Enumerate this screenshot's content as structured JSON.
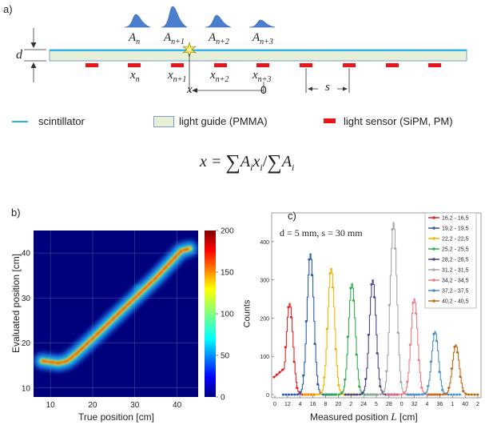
{
  "panel_a": {
    "label": "a)",
    "pulse_labels": [
      {
        "base": "A",
        "sub": "n"
      },
      {
        "base": "A",
        "sub": "n+1"
      },
      {
        "base": "A",
        "sub": "n+2"
      },
      {
        "base": "A",
        "sub": "n+3"
      }
    ],
    "sensor_labels": [
      {
        "base": "x",
        "sub": "n"
      },
      {
        "base": "x",
        "sub": "n+1"
      },
      {
        "base": "x",
        "sub": "n+2"
      },
      {
        "base": "x",
        "sub": "n+3"
      }
    ],
    "thickness_label": "d",
    "x_label": "x",
    "origin_label": "0",
    "spacing_label": "s",
    "legend": {
      "scintillator": "scintillator",
      "light_guide": "light guide (PMMA)",
      "light_sensor": "light sensor (SiPM, PM)"
    },
    "formula": {
      "lhs": "x = ",
      "sum": "∑",
      "num": "A",
      "num_sub": "i",
      "num2": "x",
      "num2_sub": "i",
      "slash": "/",
      "den": "A",
      "den_sub": "i"
    },
    "colors": {
      "scintillator": "#29b6e8",
      "light_guide": "#e6f0d8",
      "light_guide_border": "#7f9fd0",
      "sensor": "#e8151b",
      "pulse": "#4a7fd0"
    }
  },
  "panel_b": {
    "label": "b)",
    "xlabel": "True position [cm]",
    "ylabel": "Evaluated position [cm]",
    "xticks": [
      "10",
      "20",
      "30",
      "40"
    ],
    "yticks": [
      "10",
      "20",
      "30",
      "40"
    ],
    "colorbar_ticks": [
      "0",
      "50",
      "100",
      "150",
      "200"
    ]
  },
  "panel_c": {
    "label": "c)",
    "annotation": "d = 5 mm, s = 30 mm",
    "ylabel": "Counts",
    "xlabel": "Measured position",
    "xlabel_var": "L",
    "xlabel_unit": "[cm]",
    "yticks": [
      "0",
      "100",
      "200",
      "300",
      "400"
    ],
    "xticks": [
      "0",
      "12",
      "4",
      "16",
      "8",
      "20",
      "2",
      "24",
      "5",
      "28",
      "0",
      "32",
      "4",
      "36",
      "1",
      "40",
      "2"
    ]
  },
  "chart_data": [
    {
      "type": "heatmap",
      "title": "",
      "xlabel": "True position [cm]",
      "ylabel": "Evaluated position [cm]",
      "xlim": [
        6,
        45
      ],
      "ylim": [
        8,
        45
      ],
      "colorbar": {
        "min": 0,
        "max": 200,
        "colormap": "jet"
      },
      "trend": {
        "x": [
          8,
          12,
          14,
          16,
          20,
          25,
          30,
          35,
          38,
          41,
          43
        ],
        "y": [
          16,
          15.5,
          16,
          17.5,
          21,
          25.5,
          30,
          34.5,
          37.5,
          40.5,
          41
        ]
      },
      "side_branch": {
        "x": [
          30,
          33
        ],
        "y": [
          32.5,
          31.5
        ]
      },
      "grid": true
    },
    {
      "type": "line",
      "title": "",
      "xlabel": "Measured position L [cm]",
      "ylabel": "Counts",
      "ylim": [
        0,
        450
      ],
      "grid": false,
      "legend_position": "top-right",
      "series": [
        {
          "name": "16,2 - 16,5",
          "color": "#e32222",
          "center": 16.35,
          "peak": 238,
          "rel": 0
        },
        {
          "name": "19,2 - 19,5",
          "color": "#2a5ca8",
          "center": 19.35,
          "peak": 368,
          "rel": 1
        },
        {
          "name": "22,2 - 22,5",
          "color": "#f2b400",
          "center": 22.35,
          "peak": 330,
          "rel": 2
        },
        {
          "name": "25,2 - 25,5",
          "color": "#2fae4a",
          "center": 25.35,
          "peak": 290,
          "rel": 3
        },
        {
          "name": "28,2 - 28,5",
          "color": "#4a4690",
          "center": 28.35,
          "peak": 300,
          "rel": 4
        },
        {
          "name": "31,2 - 31,5",
          "color": "#a6a6a6",
          "center": 31.35,
          "peak": 450,
          "rel": 5
        },
        {
          "name": "34,2 - 34,5",
          "color": "#f07a84",
          "center": 34.35,
          "peak": 250,
          "rel": 6
        },
        {
          "name": "37,2 - 37,5",
          "color": "#4a90c8",
          "center": 37.35,
          "peak": 165,
          "rel": 7
        },
        {
          "name": "40,2 - 40,5",
          "color": "#c06a14",
          "center": 40.35,
          "peak": 130,
          "rel": 8
        }
      ]
    }
  ]
}
